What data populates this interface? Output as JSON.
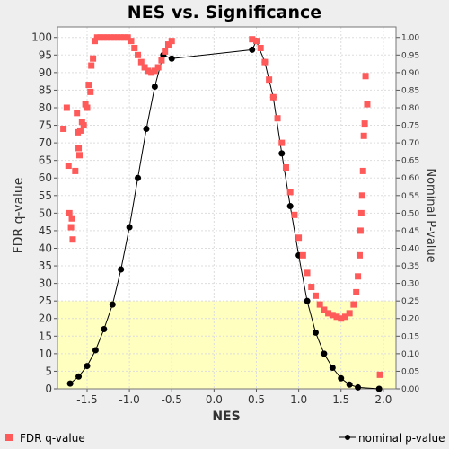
{
  "chart_data": {
    "type": "scatter",
    "title": "NES vs. Significance",
    "xlabel": "NES",
    "ylabel": "FDR q-value",
    "y2label": "Nominal P-value",
    "xlim": [
      -1.85,
      2.15
    ],
    "ylim": [
      0,
      103
    ],
    "y2lim": [
      0,
      1.03
    ],
    "x_ticks": [
      "-1.5",
      "-1.0",
      "-0.5",
      "0.0",
      "0.5",
      "1.0",
      "1.5",
      "2.0"
    ],
    "x_tick_values": [
      -1.5,
      -1.0,
      -0.5,
      0.0,
      0.5,
      1.0,
      1.5,
      2.0
    ],
    "y_ticks": [
      "0",
      "5",
      "10",
      "15",
      "20",
      "25",
      "30",
      "35",
      "40",
      "45",
      "50",
      "55",
      "60",
      "65",
      "70",
      "75",
      "80",
      "85",
      "90",
      "95",
      "100"
    ],
    "y2_ticks": [
      "0.00",
      "0.05",
      "0.10",
      "0.15",
      "0.20",
      "0.25",
      "0.30",
      "0.35",
      "0.40",
      "0.45",
      "0.50",
      "0.55",
      "0.60",
      "0.65",
      "0.70",
      "0.75",
      "0.80",
      "0.85",
      "0.90",
      "0.95",
      "1.00"
    ],
    "grid": true,
    "highlight_band": {
      "y_from": 0,
      "y_to": 25,
      "color": "#ffffc0"
    },
    "colors": {
      "fdr": "#ff5a5a",
      "nominal": "#000000",
      "plot_bg": "#ffffff",
      "page_bg": "#eeeeee"
    },
    "legend_position": "bottom",
    "series": [
      {
        "name": "FDR q-value",
        "axis": "left",
        "marker": "square",
        "points": [
          [
            -1.78,
            74
          ],
          [
            -1.74,
            80
          ],
          [
            -1.72,
            63.5
          ],
          [
            -1.71,
            50
          ],
          [
            -1.69,
            46
          ],
          [
            -1.68,
            48.5
          ],
          [
            -1.67,
            42.5
          ],
          [
            -1.64,
            62
          ],
          [
            -1.62,
            78.5
          ],
          [
            -1.61,
            73
          ],
          [
            -1.6,
            68.5
          ],
          [
            -1.59,
            66.5
          ],
          [
            -1.58,
            73.5
          ],
          [
            -1.56,
            76
          ],
          [
            -1.54,
            75
          ],
          [
            -1.52,
            81
          ],
          [
            -1.5,
            80
          ],
          [
            -1.48,
            86.5
          ],
          [
            -1.46,
            84.5
          ],
          [
            -1.45,
            92
          ],
          [
            -1.43,
            94
          ],
          [
            -1.41,
            99
          ],
          [
            -1.38,
            100
          ],
          [
            -1.34,
            100
          ],
          [
            -1.3,
            100
          ],
          [
            -1.26,
            100
          ],
          [
            -1.22,
            100
          ],
          [
            -1.18,
            100
          ],
          [
            -1.14,
            100
          ],
          [
            -1.1,
            100
          ],
          [
            -1.06,
            100
          ],
          [
            -1.02,
            100
          ],
          [
            -0.98,
            99
          ],
          [
            -0.94,
            97
          ],
          [
            -0.9,
            95
          ],
          [
            -0.86,
            93
          ],
          [
            -0.82,
            91.5
          ],
          [
            -0.78,
            90.5
          ],
          [
            -0.74,
            90
          ],
          [
            -0.7,
            90.5
          ],
          [
            -0.66,
            91.5
          ],
          [
            -0.62,
            93.5
          ],
          [
            -0.58,
            96
          ],
          [
            -0.54,
            98
          ],
          [
            -0.5,
            99
          ],
          [
            0.45,
            99.5
          ],
          [
            0.5,
            99
          ],
          [
            0.55,
            97
          ],
          [
            0.6,
            93
          ],
          [
            0.65,
            88
          ],
          [
            0.7,
            83
          ],
          [
            0.75,
            77
          ],
          [
            0.8,
            70
          ],
          [
            0.85,
            63
          ],
          [
            0.9,
            56
          ],
          [
            0.95,
            49.5
          ],
          [
            1.0,
            43
          ],
          [
            1.05,
            38
          ],
          [
            1.1,
            33
          ],
          [
            1.15,
            29
          ],
          [
            1.2,
            26.5
          ],
          [
            1.25,
            24
          ],
          [
            1.3,
            22.5
          ],
          [
            1.35,
            21.5
          ],
          [
            1.4,
            21
          ],
          [
            1.45,
            20.5
          ],
          [
            1.5,
            20
          ],
          [
            1.55,
            20.5
          ],
          [
            1.6,
            21.5
          ],
          [
            1.65,
            24
          ],
          [
            1.68,
            27.5
          ],
          [
            1.7,
            32
          ],
          [
            1.72,
            38
          ],
          [
            1.73,
            45
          ],
          [
            1.74,
            50
          ],
          [
            1.75,
            55
          ],
          [
            1.76,
            62
          ],
          [
            1.77,
            72
          ],
          [
            1.78,
            75.5
          ],
          [
            1.79,
            89
          ],
          [
            1.81,
            81
          ],
          [
            1.96,
            4
          ]
        ]
      },
      {
        "name": "nominal p-value",
        "axis": "right",
        "marker": "circle",
        "points": [
          [
            -1.7,
            0.015
          ],
          [
            -1.6,
            0.035
          ],
          [
            -1.5,
            0.065
          ],
          [
            -1.4,
            0.11
          ],
          [
            -1.3,
            0.17
          ],
          [
            -1.2,
            0.24
          ],
          [
            -1.1,
            0.34
          ],
          [
            -1.0,
            0.46
          ],
          [
            -0.9,
            0.6
          ],
          [
            -0.8,
            0.74
          ],
          [
            -0.7,
            0.86
          ],
          [
            -0.6,
            0.95
          ],
          [
            -0.5,
            0.94
          ],
          [
            0.45,
            0.965
          ],
          [
            0.5,
            0.99
          ],
          [
            0.6,
            0.93
          ],
          [
            0.7,
            0.83
          ],
          [
            0.8,
            0.67
          ],
          [
            0.9,
            0.52
          ],
          [
            1.0,
            0.38
          ],
          [
            1.1,
            0.25
          ],
          [
            1.2,
            0.16
          ],
          [
            1.3,
            0.1
          ],
          [
            1.4,
            0.06
          ],
          [
            1.5,
            0.03
          ],
          [
            1.6,
            0.012
          ],
          [
            1.7,
            0.004
          ],
          [
            1.95,
            0.0
          ]
        ]
      }
    ]
  }
}
